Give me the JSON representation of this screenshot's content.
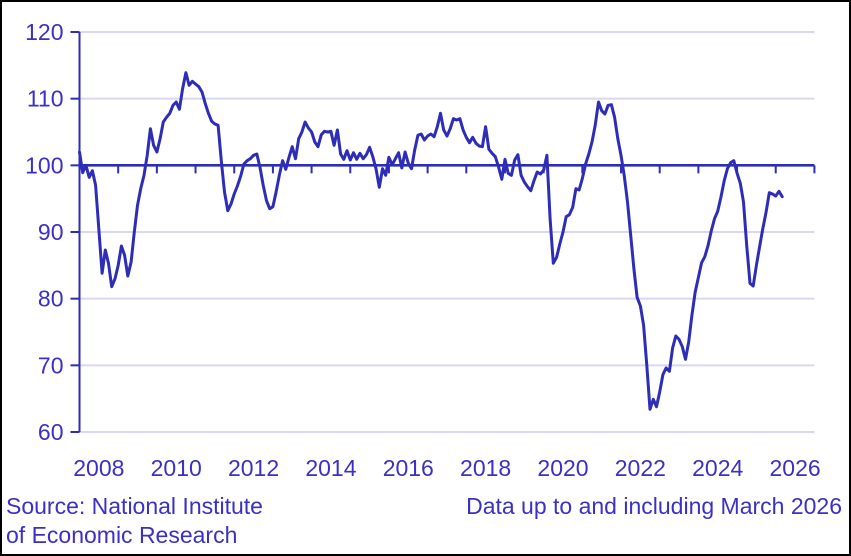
{
  "chart_data": {
    "type": "line",
    "title": "",
    "xlabel": "",
    "ylabel": "",
    "frequency": "monthly",
    "x_start_year": 2008,
    "x_start_month": 1,
    "x_end_year": 2026,
    "x_end_month": 3,
    "x_axis_end_year": 2027,
    "ylim": [
      60,
      120
    ],
    "y_ticks": [
      60,
      70,
      80,
      90,
      100,
      110,
      120
    ],
    "reference_line": 100,
    "x_labels": [
      2008,
      2010,
      2012,
      2014,
      2016,
      2018,
      2020,
      2022,
      2024,
      2026
    ],
    "grid": "horizontal-light",
    "legend": "none",
    "values": [
      102,
      98.9,
      100,
      98.2,
      99.2,
      97,
      90.5,
      83.8,
      87.3,
      85.3,
      81.8,
      83,
      85,
      87.9,
      86.5,
      83.4,
      85.5,
      90,
      94,
      96.5,
      98.5,
      101.5,
      105.5,
      103,
      102,
      104,
      106.5,
      107.2,
      107.8,
      109,
      109.5,
      108.4,
      111.5,
      113.9,
      112,
      112.6,
      112.2,
      111.8,
      111,
      109.3,
      107.8,
      106.6,
      106.2,
      106,
      100.7,
      96,
      93.2,
      94.2,
      95.7,
      96.9,
      98.4,
      100.2,
      100.7,
      101,
      101.5,
      101.7,
      99.7,
      97,
      94.7,
      93.5,
      93.8,
      96,
      98.5,
      100.7,
      99.4,
      101.2,
      102.8,
      101,
      104,
      105,
      106.5,
      105.6,
      105,
      103.5,
      102.8,
      104.6,
      105.1,
      105,
      105.1,
      103,
      105.3,
      101.7,
      100.9,
      102.2,
      100.8,
      101.9,
      100.9,
      101.8,
      101,
      101.6,
      102.7,
      101.3,
      99.5,
      96.7,
      99.5,
      98.5,
      101.2,
      100.1,
      101,
      101.9,
      99.6,
      102,
      100.3,
      99.5,
      102.3,
      104.5,
      104.7,
      103.8,
      104.4,
      104.7,
      104.3,
      105.8,
      107.8,
      105.3,
      104.4,
      105.5,
      107,
      106.8,
      107,
      105.3,
      104.2,
      103.4,
      104.2,
      103.3,
      102.9,
      102.8,
      105.8,
      102.4,
      101.8,
      101.3,
      99.8,
      97.9,
      100.9,
      98.8,
      98.5,
      100.8,
      101.6,
      98.5,
      97.5,
      96.8,
      96.2,
      97.7,
      99,
      98.7,
      99.3,
      101.5,
      92,
      85.3,
      86.2,
      88.2,
      90,
      92.3,
      92.6,
      93.7,
      96.5,
      96.3,
      98,
      100.2,
      101.7,
      103.5,
      106,
      109.5,
      108.2,
      107.7,
      109,
      109.1,
      107.2,
      104,
      101.5,
      98.5,
      94.5,
      89.5,
      84.5,
      80.2,
      78.9,
      76,
      70,
      63.4,
      64.9,
      63.8,
      66,
      68.6,
      69.6,
      69.1,
      72.6,
      74.4,
      73.9,
      72.8,
      70.9,
      73.5,
      77.5,
      81,
      83.2,
      85.4,
      86.3,
      88,
      90.2,
      92,
      93.1,
      95.2,
      97.7,
      99.5,
      100.4,
      100.7,
      98.8,
      97.3,
      94.5,
      88,
      82.3,
      81.9,
      85,
      87.8,
      90.5,
      93,
      95.9,
      95.7,
      95.4,
      96.1,
      95.3
    ],
    "colors": {
      "line": "#2d2db8",
      "axis": "#2d2db8",
      "grid": "#d8d8f2",
      "text": "#3a30c6",
      "border": "#000000",
      "background": "#ffffff"
    }
  },
  "footer": {
    "source_line1": "Source: National Institute",
    "source_line2": "of Economic Research",
    "data_note": "Data up to and including March 2026"
  }
}
